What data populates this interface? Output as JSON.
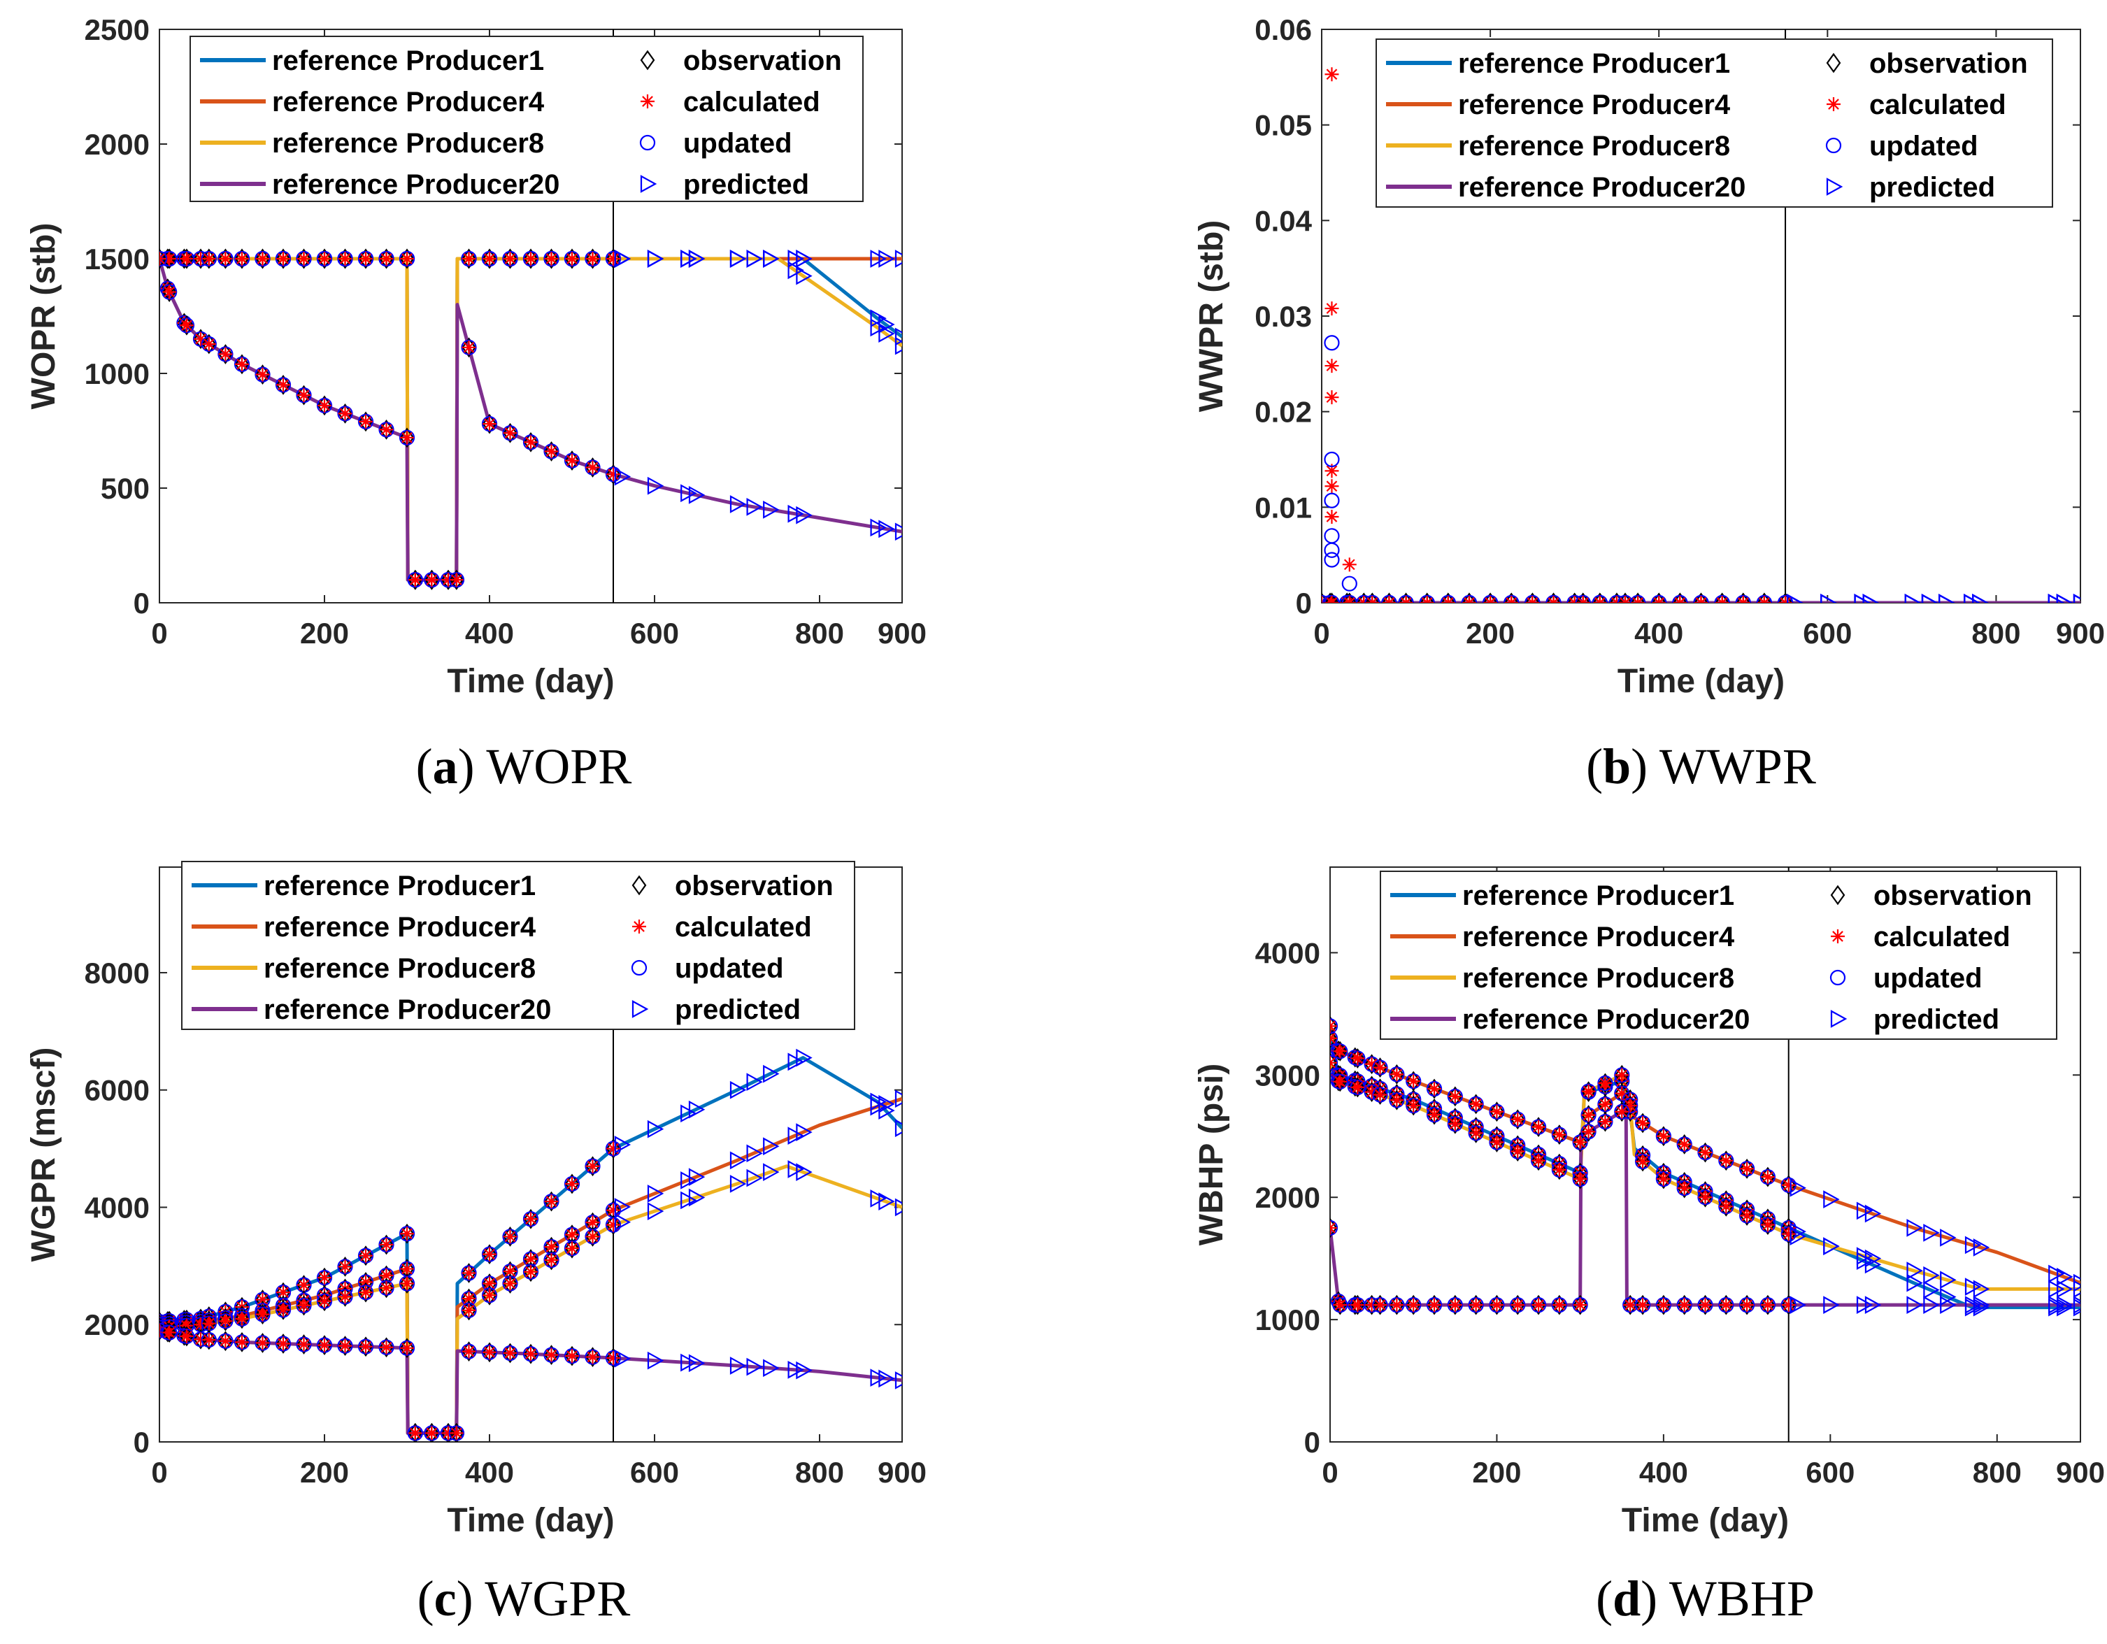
{
  "figure": {
    "line_names": [
      "reference Producer1",
      "reference Producer4",
      "reference Producer8",
      "reference Producer20"
    ],
    "marker_names": [
      "observation",
      "calculated",
      "updated",
      "predicted"
    ],
    "colors": {
      "Producer1": "#0072BD",
      "Producer4": "#D95319",
      "Producer8": "#EDB120",
      "Producer20": "#7E2F8E",
      "observation": "#000000",
      "calculated": "#FF0000",
      "updated": "#0000FF",
      "predicted": "#0000FF",
      "divider": "#000000"
    }
  },
  "chart_data": [
    {
      "type": "line",
      "panel": "a",
      "caption_letter": "a",
      "caption_text": "WOPR",
      "xlabel": "Time (day)",
      "ylabel": "WOPR (stb)",
      "xlim": [
        0,
        900
      ],
      "ylim": [
        0,
        2500
      ],
      "xticks": [
        0,
        200,
        400,
        600,
        800,
        900
      ],
      "yticks": [
        0,
        500,
        1000,
        1500,
        2000,
        2500
      ],
      "ytick_labels": [
        "0",
        "500",
        "1000",
        "1500",
        "2000",
        "2500"
      ],
      "vline_x": 550,
      "legend_position": "top",
      "series": [
        {
          "name": "reference Producer1",
          "x": [
            0,
            300,
            301,
            360,
            361,
            780,
            870,
            900
          ],
          "y": [
            1500,
            1500,
            100,
            100,
            1500,
            1500,
            1240,
            1160
          ]
        },
        {
          "name": "reference Producer4",
          "x": [
            0,
            300,
            301,
            360,
            361,
            900
          ],
          "y": [
            1500,
            1500,
            100,
            100,
            1500,
            1500
          ]
        },
        {
          "name": "reference Producer8",
          "x": [
            0,
            300,
            301,
            360,
            361,
            750,
            870,
            900
          ],
          "y": [
            1500,
            1500,
            100,
            100,
            1500,
            1500,
            1200,
            1120
          ]
        },
        {
          "name": "reference Producer20",
          "x": [
            0,
            10,
            30,
            50,
            100,
            200,
            300,
            301,
            360,
            361,
            400,
            500,
            550,
            600,
            700,
            800,
            900
          ],
          "y": [
            1500,
            1370,
            1220,
            1150,
            1040,
            860,
            720,
            100,
            100,
            1300,
            780,
            620,
            560,
            510,
            430,
            370,
            310
          ]
        }
      ]
    },
    {
      "type": "line",
      "panel": "b",
      "caption_letter": "b",
      "caption_text": "WWPR",
      "xlabel": "Time (day)",
      "ylabel": "WWPR (stb)",
      "xlim": [
        0,
        900
      ],
      "ylim": [
        0,
        0.06
      ],
      "xticks": [
        0,
        200,
        400,
        600,
        800,
        900
      ],
      "yticks": [
        0,
        0.01,
        0.02,
        0.03,
        0.04,
        0.05,
        0.06
      ],
      "ytick_labels": [
        "0",
        "0.01",
        "0.02",
        "0.03",
        "0.04",
        "0.05",
        "0.06"
      ],
      "vline_x": 550,
      "legend_position": "top",
      "series": [
        {
          "name": "reference Producer1",
          "x": [
            0,
            900
          ],
          "y": [
            0,
            0
          ]
        },
        {
          "name": "reference Producer4",
          "x": [
            0,
            900
          ],
          "y": [
            0,
            0
          ]
        },
        {
          "name": "reference Producer8",
          "x": [
            0,
            900
          ],
          "y": [
            0,
            0
          ]
        },
        {
          "name": "reference Producer20",
          "x": [
            0,
            900
          ],
          "y": [
            0,
            0
          ]
        }
      ],
      "calculated_spikes": [
        {
          "x": 12,
          "y": 0.0553
        },
        {
          "x": 12,
          "y": 0.0308
        },
        {
          "x": 12,
          "y": 0.0248
        },
        {
          "x": 12,
          "y": 0.0215
        },
        {
          "x": 12,
          "y": 0.0138
        },
        {
          "x": 12,
          "y": 0.0122
        },
        {
          "x": 12,
          "y": 0.009
        },
        {
          "x": 33,
          "y": 0.004
        }
      ],
      "updated_spikes": [
        {
          "x": 12,
          "y": 0.0272
        },
        {
          "x": 12,
          "y": 0.015
        },
        {
          "x": 12,
          "y": 0.0107
        },
        {
          "x": 12,
          "y": 0.007
        },
        {
          "x": 12,
          "y": 0.0055
        },
        {
          "x": 12,
          "y": 0.0045
        },
        {
          "x": 33,
          "y": 0.002
        }
      ]
    },
    {
      "type": "line",
      "panel": "c",
      "caption_letter": "c",
      "caption_text": "WGPR",
      "xlabel": "Time (day)",
      "ylabel": "WGPR (mscf)",
      "xlim": [
        0,
        900
      ],
      "ylim": [
        0,
        9800
      ],
      "xticks": [
        0,
        200,
        400,
        600,
        800,
        900
      ],
      "yticks": [
        0,
        2000,
        4000,
        6000,
        8000
      ],
      "ytick_labels": [
        "0",
        "2000",
        "4000",
        "6000",
        "8000"
      ],
      "vline_x": 550,
      "legend_position": "top",
      "series": [
        {
          "name": "reference Producer1",
          "x": [
            0,
            50,
            100,
            200,
            300,
            301,
            360,
            361,
            400,
            550,
            700,
            780,
            870,
            900
          ],
          "y": [
            2050,
            2100,
            2300,
            2800,
            3550,
            150,
            150,
            2700,
            3200,
            5000,
            6000,
            6550,
            5800,
            5350
          ]
        },
        {
          "name": "reference Producer4",
          "x": [
            0,
            50,
            100,
            200,
            300,
            301,
            360,
            361,
            400,
            550,
            700,
            800,
            900
          ],
          "y": [
            2000,
            2050,
            2150,
            2500,
            2950,
            150,
            150,
            2300,
            2700,
            3950,
            4800,
            5400,
            5850
          ]
        },
        {
          "name": "reference Producer8",
          "x": [
            0,
            50,
            100,
            200,
            300,
            301,
            360,
            361,
            400,
            550,
            700,
            760,
            870,
            900
          ],
          "y": [
            1950,
            2000,
            2100,
            2400,
            2700,
            150,
            150,
            2100,
            2500,
            3700,
            4400,
            4700,
            4150,
            4000
          ]
        },
        {
          "name": "reference Producer20",
          "x": [
            0,
            50,
            100,
            200,
            300,
            301,
            360,
            361,
            450,
            550,
            700,
            800,
            900
          ],
          "y": [
            1900,
            1750,
            1700,
            1650,
            1600,
            150,
            150,
            1550,
            1500,
            1430,
            1300,
            1200,
            1050
          ]
        }
      ]
    },
    {
      "type": "line",
      "panel": "d",
      "caption_letter": "d",
      "caption_text": "WBHP",
      "xlabel": "Time (day)",
      "ylabel": "WBHP (psi)",
      "xlim": [
        0,
        900
      ],
      "ylim": [
        0,
        4700
      ],
      "xticks": [
        0,
        200,
        400,
        600,
        800,
        900
      ],
      "yticks": [
        0,
        1000,
        2000,
        3000,
        4000
      ],
      "ytick_labels": [
        "0",
        "1000",
        "2000",
        "3000",
        "4000"
      ],
      "vline_x": 550,
      "legend_position": "top",
      "series": [
        {
          "name": "reference Producer1",
          "x": [
            0,
            10,
            100,
            200,
            300,
            305,
            350,
            360,
            365,
            400,
            550,
            700,
            770,
            900
          ],
          "y": [
            3300,
            3000,
            2800,
            2500,
            2200,
            2850,
            2950,
            2700,
            2400,
            2200,
            1750,
            1300,
            1100,
            1100
          ]
        },
        {
          "name": "reference Producer4",
          "x": [
            0,
            10,
            100,
            200,
            300,
            305,
            350,
            360,
            365,
            400,
            550,
            700,
            800,
            900
          ],
          "y": [
            3400,
            3200,
            2950,
            2700,
            2450,
            2650,
            2850,
            2800,
            2650,
            2500,
            2100,
            1750,
            1550,
            1300
          ]
        },
        {
          "name": "reference Producer8",
          "x": [
            0,
            10,
            100,
            200,
            300,
            305,
            350,
            360,
            365,
            400,
            550,
            700,
            780,
            900
          ],
          "y": [
            3100,
            2950,
            2750,
            2450,
            2150,
            2850,
            3000,
            2750,
            2350,
            2150,
            1700,
            1400,
            1250,
            1250
          ]
        },
        {
          "name": "reference Producer20",
          "x": [
            0,
            10,
            12,
            100,
            300,
            301,
            350,
            355,
            356,
            550,
            700,
            900
          ],
          "y": [
            1750,
            1150,
            1120,
            1120,
            1120,
            2500,
            2700,
            2750,
            1120,
            1120,
            1120,
            1120
          ]
        }
      ]
    }
  ]
}
